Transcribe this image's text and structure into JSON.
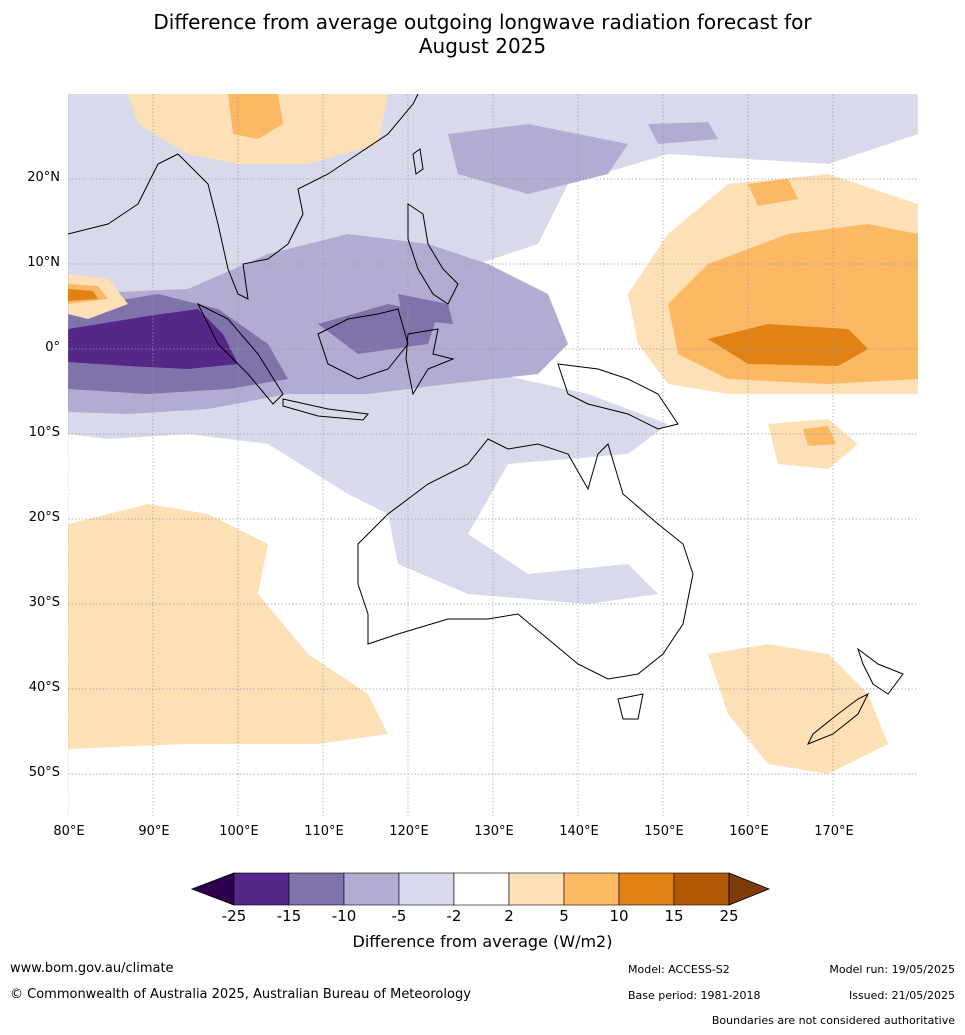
{
  "title_line1": "Difference from average outgoing longwave radiation forecast for",
  "title_line2": "August 2025",
  "lat_labels": [
    "20°N",
    "10°N",
    "0°",
    "10°S",
    "20°S",
    "30°S",
    "40°S",
    "50°S"
  ],
  "lon_labels": [
    "80°E",
    "90°E",
    "100°E",
    "110°E",
    "120°E",
    "130°E",
    "140°E",
    "150°E",
    "160°E",
    "170°E"
  ],
  "colorbar": {
    "ticks": [
      "-25",
      "-15",
      "-10",
      "-5",
      "-2",
      "2",
      "5",
      "10",
      "15",
      "25"
    ],
    "colors": [
      "#2d004b",
      "#542788",
      "#8073ac",
      "#b2abd2",
      "#d8daeb",
      "#ffffff",
      "#fee0b6",
      "#fdb863",
      "#e08214",
      "#b35806",
      "#7f3b08"
    ],
    "label": "Difference from average (W/m2)"
  },
  "footer": {
    "website": "www.bom.gov.au/climate",
    "copyright": "© Commonwealth of Australia 2025, Australian Bureau of Meteorology",
    "model": "Model: ACCESS-S2",
    "base_period": "Base period: 1981-2018",
    "model_run": "Model run: 19/05/2025",
    "issued": "Issued: 21/05/2025",
    "disclaimer": "Boundaries are not considered authoritative"
  }
}
